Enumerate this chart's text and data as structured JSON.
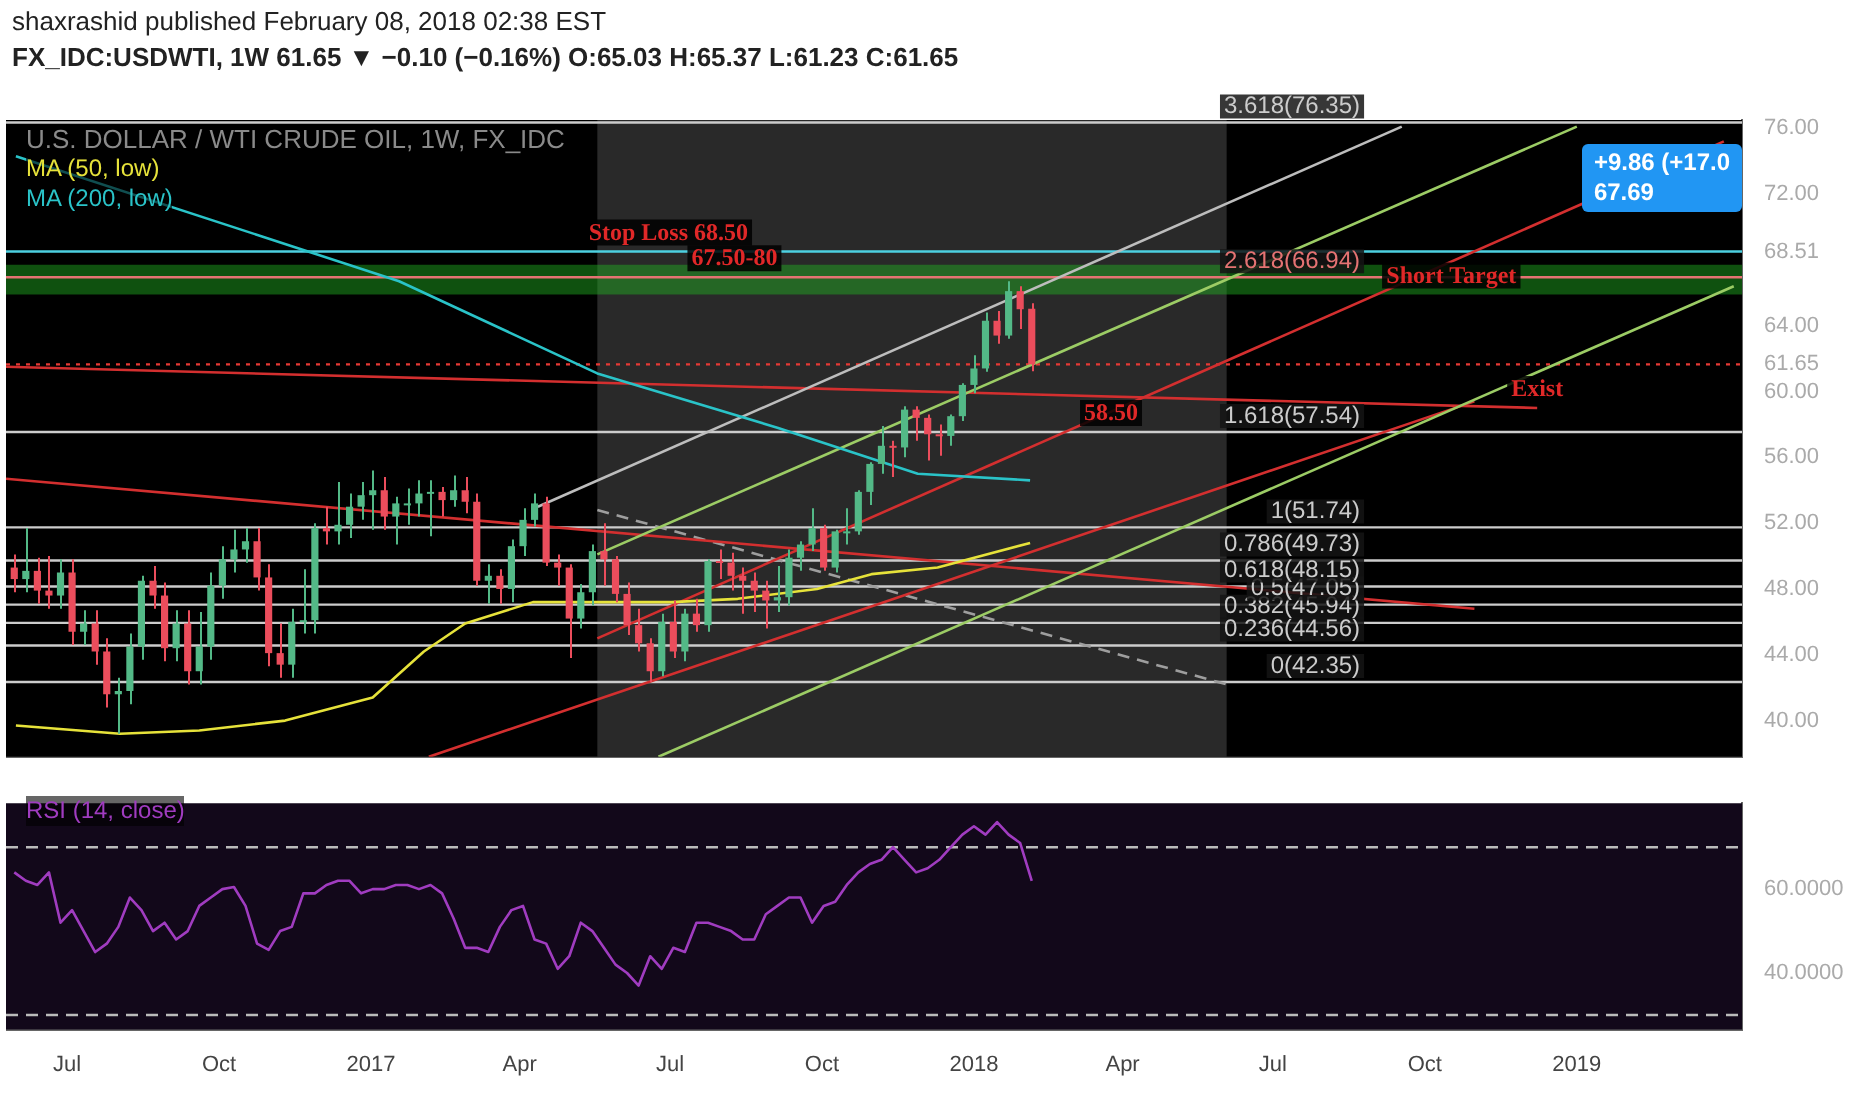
{
  "chart_data": [
    {
      "type": "candlestick",
      "title": "U.S. DOLLAR / WTI CRUDE OIL, 1W, FX_IDC",
      "subtitle": "FX_IDC:USDWTI, 1W 61.65 ▼ −0.10 (−0.16%) O:65.03 H:65.37 L:61.23 C:61.65",
      "x": [
        "2016-05-30",
        "2016-06-06",
        "2016-06-13",
        "2016-06-20",
        "2016-06-27",
        "2016-07-04",
        "2016-07-11",
        "2016-07-18",
        "2016-07-25",
        "2016-08-01",
        "2016-08-08",
        "2016-08-15",
        "2016-08-22",
        "2016-08-29",
        "2016-09-05",
        "2016-09-12",
        "2016-09-19",
        "2016-09-26",
        "2016-10-03",
        "2016-10-10",
        "2016-10-17",
        "2016-10-24",
        "2016-10-31",
        "2016-11-07",
        "2016-11-14",
        "2016-11-21",
        "2016-11-28",
        "2016-12-05",
        "2016-12-12",
        "2016-12-19",
        "2016-12-26",
        "2017-01-02",
        "2017-01-09",
        "2017-01-16",
        "2017-01-23",
        "2017-01-30",
        "2017-02-06",
        "2017-02-13",
        "2017-02-20",
        "2017-02-27",
        "2017-03-06",
        "2017-03-13",
        "2017-03-20",
        "2017-03-27",
        "2017-04-03",
        "2017-04-10",
        "2017-04-17",
        "2017-04-24",
        "2017-05-01",
        "2017-05-08",
        "2017-05-15",
        "2017-05-22",
        "2017-05-29",
        "2017-06-05",
        "2017-06-12",
        "2017-06-19",
        "2017-06-26",
        "2017-07-03",
        "2017-07-10",
        "2017-07-17",
        "2017-07-24",
        "2017-07-31",
        "2017-08-07",
        "2017-08-14",
        "2017-08-21",
        "2017-08-28",
        "2017-09-04",
        "2017-09-11",
        "2017-09-18",
        "2017-09-25",
        "2017-10-02",
        "2017-10-09",
        "2017-10-16",
        "2017-10-23",
        "2017-10-30",
        "2017-11-06",
        "2017-11-13",
        "2017-11-20",
        "2017-11-27",
        "2017-12-04",
        "2017-12-11",
        "2017-12-18",
        "2017-12-25",
        "2018-01-01",
        "2018-01-08",
        "2018-01-15",
        "2018-01-22",
        "2018-01-29",
        "2018-02-05"
      ],
      "ohlc": [
        [
          49.3,
          50.1,
          47.8,
          48.6
        ],
        [
          48.6,
          51.7,
          47.8,
          49.1
        ],
        [
          49.1,
          49.9,
          47.1,
          47.9
        ],
        [
          47.9,
          50.0,
          46.8,
          47.6
        ],
        [
          47.6,
          49.8,
          46.8,
          49.0
        ],
        [
          49.0,
          49.8,
          44.6,
          45.4
        ],
        [
          45.4,
          46.7,
          44.6,
          45.9
        ],
        [
          45.9,
          46.7,
          43.4,
          44.2
        ],
        [
          44.2,
          45.0,
          40.8,
          41.6
        ],
        [
          41.6,
          42.6,
          39.2,
          41.8
        ],
        [
          41.8,
          45.3,
          41.0,
          44.5
        ],
        [
          44.5,
          48.8,
          43.7,
          48.5
        ],
        [
          48.5,
          49.4,
          46.8,
          47.6
        ],
        [
          47.6,
          48.4,
          43.6,
          44.4
        ],
        [
          44.4,
          46.7,
          43.6,
          45.9
        ],
        [
          45.9,
          46.7,
          42.2,
          43.0
        ],
        [
          43.0,
          46.6,
          42.2,
          44.5
        ],
        [
          44.5,
          49.0,
          43.7,
          48.2
        ],
        [
          48.2,
          50.6,
          47.4,
          49.8
        ],
        [
          49.8,
          51.6,
          49.0,
          50.4
        ],
        [
          50.4,
          51.7,
          49.6,
          50.9
        ],
        [
          50.9,
          51.7,
          47.9,
          48.7
        ],
        [
          48.7,
          49.5,
          43.3,
          44.1
        ],
        [
          44.1,
          45.9,
          42.6,
          43.4
        ],
        [
          43.4,
          46.8,
          42.6,
          46.0
        ],
        [
          46.0,
          49.2,
          45.3,
          46.1
        ],
        [
          46.1,
          52.0,
          45.3,
          51.7
        ],
        [
          51.7,
          53.0,
          50.7,
          51.5
        ],
        [
          51.5,
          54.5,
          50.7,
          51.9
        ],
        [
          51.9,
          53.8,
          51.1,
          53.0
        ],
        [
          53.0,
          54.5,
          52.2,
          53.7
        ],
        [
          53.7,
          55.2,
          51.6,
          54.0
        ],
        [
          54.0,
          54.8,
          51.6,
          52.4
        ],
        [
          52.4,
          53.6,
          50.7,
          53.2
        ],
        [
          53.2,
          54.1,
          51.9,
          53.2
        ],
        [
          53.2,
          54.6,
          52.4,
          53.8
        ],
        [
          53.8,
          54.6,
          51.2,
          53.9
        ],
        [
          53.9,
          54.2,
          52.4,
          53.4
        ],
        [
          53.4,
          54.9,
          53.0,
          54.0
        ],
        [
          54.0,
          54.8,
          52.6,
          53.3
        ],
        [
          53.3,
          53.8,
          48.2,
          48.5
        ],
        [
          48.5,
          49.5,
          47.1,
          48.8
        ],
        [
          48.8,
          49.2,
          47.1,
          48.0
        ],
        [
          48.0,
          51.0,
          47.2,
          50.6
        ],
        [
          50.6,
          52.9,
          50.0,
          52.2
        ],
        [
          52.2,
          53.8,
          51.8,
          53.2
        ],
        [
          53.2,
          53.6,
          49.4,
          49.6
        ],
        [
          49.6,
          50.1,
          48.2,
          49.3
        ],
        [
          49.3,
          49.5,
          43.8,
          46.2
        ],
        [
          46.2,
          48.3,
          45.6,
          47.8
        ],
        [
          47.8,
          50.7,
          47.0,
          50.3
        ],
        [
          50.3,
          52.0,
          48.2,
          49.8
        ],
        [
          49.8,
          50.0,
          47.2,
          47.7
        ],
        [
          47.7,
          48.4,
          45.2,
          45.8
        ],
        [
          45.8,
          46.8,
          44.2,
          44.7
        ],
        [
          44.7,
          45.0,
          42.35,
          43.0
        ],
        [
          43.0,
          46.5,
          42.7,
          46.0
        ],
        [
          46.0,
          47.3,
          43.8,
          44.2
        ],
        [
          44.2,
          46.8,
          43.6,
          46.5
        ],
        [
          46.5,
          47.4,
          45.4,
          45.8
        ],
        [
          45.8,
          49.8,
          45.4,
          49.7
        ],
        [
          49.7,
          50.4,
          48.6,
          49.6
        ],
        [
          49.6,
          50.2,
          47.9,
          48.8
        ],
        [
          48.8,
          49.3,
          46.5,
          48.5
        ],
        [
          48.5,
          49.0,
          46.6,
          47.9
        ],
        [
          47.9,
          48.5,
          45.6,
          47.3
        ],
        [
          47.3,
          49.4,
          46.6,
          47.5
        ],
        [
          47.5,
          50.4,
          47.0,
          49.9
        ],
        [
          49.9,
          50.9,
          49.1,
          50.7
        ],
        [
          50.7,
          52.9,
          50.3,
          51.7
        ],
        [
          51.7,
          51.9,
          49.1,
          49.3
        ],
        [
          49.3,
          51.6,
          49.0,
          51.5
        ],
        [
          51.5,
          52.9,
          50.7,
          51.5
        ],
        [
          51.5,
          54.0,
          51.3,
          53.9
        ],
        [
          53.9,
          55.7,
          53.1,
          55.6
        ],
        [
          55.6,
          57.9,
          55.0,
          56.7
        ],
        [
          56.7,
          57.0,
          54.8,
          56.6
        ],
        [
          56.6,
          59.1,
          56.0,
          58.9
        ],
        [
          58.9,
          59.1,
          57.0,
          58.4
        ],
        [
          58.4,
          58.6,
          55.8,
          57.4
        ],
        [
          57.4,
          58.0,
          56.1,
          57.3
        ],
        [
          57.3,
          58.6,
          56.7,
          58.5
        ],
        [
          58.5,
          60.5,
          58.2,
          60.4
        ],
        [
          60.4,
          62.2,
          59.9,
          61.4
        ],
        [
          61.4,
          64.8,
          61.2,
          64.3
        ],
        [
          64.3,
          64.9,
          62.9,
          63.4
        ],
        [
          63.4,
          66.7,
          63.2,
          66.1
        ],
        [
          66.1,
          66.4,
          63.8,
          65.0
        ],
        [
          65.03,
          65.37,
          61.23,
          61.65
        ]
      ],
      "series": [
        {
          "name": "MA (50, low)",
          "type": "line",
          "color": "#e6e23a",
          "x": [
            "2016-05-31",
            "2016-08-02",
            "2016-09-19",
            "2016-11-10",
            "2017-01-02",
            "2017-02-02",
            "2017-02-27",
            "2017-04-09",
            "2017-07-02",
            "2017-08-11",
            "2017-09-28",
            "2017-10-31",
            "2017-12-10",
            "2018-02-04"
          ],
          "values": [
            39.7,
            39.2,
            39.4,
            40.0,
            41.4,
            44.2,
            45.9,
            47.2,
            47.2,
            47.4,
            48.0,
            48.9,
            49.3,
            50.8
          ]
        },
        {
          "name": "MA (200, low)",
          "type": "line",
          "color": "#2ac3c8",
          "x": [
            "2016-05-31",
            "2016-11-15",
            "2017-01-18",
            "2017-05-18",
            "2017-09-04",
            "2017-11-28",
            "2018-02-04"
          ],
          "values": [
            74.3,
            68.8,
            66.7,
            61.1,
            57.8,
            55.0,
            54.6
          ]
        },
        {
          "type": "line",
          "color": "#bdbdbd",
          "x": [
            "2017-04-12",
            "2018-09-17"
          ],
          "values": [
            53.0,
            76.1
          ]
        },
        {
          "type": "line",
          "color": "#9ccc65",
          "x": [
            "2017-05-18",
            "2019-01-01"
          ],
          "values": [
            50.1,
            76.1
          ]
        },
        {
          "type": "line",
          "color": "#d32f2f",
          "x": [
            "2017-05-18",
            "2019-03-31"
          ],
          "values": [
            45.0,
            75.2
          ]
        },
        {
          "type": "line",
          "color": "#9ccc65",
          "x": [
            "2017-06-24",
            "2019-04-06"
          ],
          "values": [
            37.8,
            66.4
          ]
        },
        {
          "type": "line",
          "color": "#d32f2f",
          "x": [
            "2017-02-05",
            "2018-10-31"
          ],
          "values": [
            37.8,
            59.4
          ]
        },
        {
          "type": "line",
          "color": "#d32f2f",
          "x": [
            "2016-05-25",
            "2018-10-31"
          ],
          "values": [
            54.7,
            46.8
          ]
        },
        {
          "type": "line",
          "color": "#d32f2f",
          "x": [
            "2016-05-25",
            "2018-12-08"
          ],
          "values": [
            61.5,
            59.0
          ]
        },
        {
          "type": "line",
          "color": "#9e9e9e",
          "line_style": "dashed",
          "x": [
            "2017-05-18",
            "2018-06-03"
          ],
          "values": [
            52.8,
            42.2
          ]
        }
      ],
      "xlim": [
        "2016-05-25",
        "2019-04-11"
      ],
      "ylim": [
        37.8,
        76.5
      ],
      "yticks": [
        {
          "value": 40,
          "label": "40.00"
        },
        {
          "value": 44,
          "label": "44.00"
        },
        {
          "value": 48,
          "label": "48.00"
        },
        {
          "value": 52,
          "label": "52.00"
        },
        {
          "value": 56,
          "label": "56.00"
        },
        {
          "value": 60,
          "label": "60.00"
        },
        {
          "value": 61.65,
          "label": "61.65"
        },
        {
          "value": 64,
          "label": "64.00"
        },
        {
          "value": 68.51,
          "label": "68.51"
        },
        {
          "value": 72,
          "label": "72.00"
        },
        {
          "value": 76,
          "label": "76.00"
        }
      ],
      "tick_labels": "y",
      "grid": false,
      "legend": "top left",
      "bands": [
        {
          "axis": "x",
          "from": "2017-05-18",
          "to": "2018-06-03",
          "color": "#5a5a5a"
        },
        {
          "axis": "y",
          "from": 65.9,
          "to": 67.7,
          "color": "#22b322"
        }
      ],
      "ref_lines": [
        {
          "axis": "y",
          "value": 42.35,
          "label": "0(42.35)",
          "color": "#cccccc"
        },
        {
          "axis": "y",
          "value": 44.56,
          "label": "0.236(44.56)",
          "color": "#cccccc"
        },
        {
          "axis": "y",
          "value": 45.94,
          "label": "0.382(45.94)",
          "color": "#cccccc"
        },
        {
          "axis": "y",
          "value": 47.05,
          "label": "0.5(47.05)",
          "color": "#cccccc"
        },
        {
          "axis": "y",
          "value": 48.15,
          "label": "0.618(48.15)",
          "color": "#cccccc"
        },
        {
          "axis": "y",
          "value": 49.73,
          "label": "0.786(49.73)",
          "color": "#cccccc"
        },
        {
          "axis": "y",
          "value": 51.74,
          "label": "1(51.74)",
          "color": "#cccccc"
        },
        {
          "axis": "y",
          "value": 57.54,
          "label": "1.618(57.54)",
          "color": "#cccccc"
        },
        {
          "axis": "y",
          "value": 66.94,
          "label": "2.618(66.94)",
          "color": "#e57373"
        },
        {
          "axis": "y",
          "value": 76.35,
          "label": "3.618(76.35)",
          "color": "#cccccc"
        },
        {
          "axis": "y",
          "value": 68.51,
          "color": "#4dd0e1"
        },
        {
          "axis": "y",
          "value": 61.65,
          "color": "#e53935",
          "line_style": "dotted"
        }
      ],
      "annotations": [
        "shaxrashid published February 08, 2018 02:38 EST",
        {
          "text": "Stop Loss 68.50",
          "x": "2017-06-30",
          "y": 68.51
        },
        {
          "text": "67.50-80",
          "x": "2017-08-09",
          "y": 66.94
        },
        {
          "text": "Short Target",
          "x": "2018-10-17",
          "y": 65.9
        },
        {
          "text": "Exist",
          "x": "2018-12-08",
          "y": 59.0
        },
        {
          "text": "58.50",
          "x": "2018-03-25",
          "y": 57.54
        },
        "+9.86 (+17.0",
        "67.69"
      ]
    },
    {
      "type": "line",
      "legend": "top left",
      "grid": false,
      "x": [
        "2016-05-30",
        "2016-06-06",
        "2016-06-13",
        "2016-06-20",
        "2016-06-27",
        "2016-07-04",
        "2016-07-11",
        "2016-07-18",
        "2016-07-25",
        "2016-08-01",
        "2016-08-08",
        "2016-08-15",
        "2016-08-22",
        "2016-08-29",
        "2016-09-05",
        "2016-09-12",
        "2016-09-19",
        "2016-09-26",
        "2016-10-03",
        "2016-10-10",
        "2016-10-17",
        "2016-10-24",
        "2016-10-31",
        "2016-11-07",
        "2016-11-14",
        "2016-11-21",
        "2016-11-28",
        "2016-12-05",
        "2016-12-12",
        "2016-12-19",
        "2016-12-26",
        "2017-01-02",
        "2017-01-09",
        "2017-01-16",
        "2017-01-23",
        "2017-01-30",
        "2017-02-06",
        "2017-02-13",
        "2017-02-20",
        "2017-02-27",
        "2017-03-06",
        "2017-03-13",
        "2017-03-20",
        "2017-03-27",
        "2017-04-03",
        "2017-04-10",
        "2017-04-17",
        "2017-04-24",
        "2017-05-01",
        "2017-05-08",
        "2017-05-15",
        "2017-05-22",
        "2017-05-29",
        "2017-06-05",
        "2017-06-12",
        "2017-06-19",
        "2017-06-26",
        "2017-07-03",
        "2017-07-10",
        "2017-07-17",
        "2017-07-24",
        "2017-07-31",
        "2017-08-07",
        "2017-08-14",
        "2017-08-21",
        "2017-08-28",
        "2017-09-04",
        "2017-09-11",
        "2017-09-18",
        "2017-09-25",
        "2017-10-02",
        "2017-10-09",
        "2017-10-16",
        "2017-10-23",
        "2017-10-30",
        "2017-11-06",
        "2017-11-13",
        "2017-11-20",
        "2017-11-27",
        "2017-12-04",
        "2017-12-11",
        "2017-12-18",
        "2017-12-25",
        "2018-01-01",
        "2018-01-08",
        "2018-01-15",
        "2018-01-22",
        "2018-01-29",
        "2018-02-05"
      ],
      "series": [
        {
          "name": "RSI (14, close)",
          "color": "#a03cc0",
          "values": [
            64,
            62,
            61,
            64,
            52,
            55,
            50,
            45,
            47,
            51,
            58,
            55,
            50,
            52,
            48,
            50,
            56,
            58,
            60,
            60.5,
            56,
            47,
            45.5,
            50,
            51,
            59,
            59,
            61,
            62,
            62,
            59,
            60,
            60,
            61,
            61,
            60,
            61,
            59,
            53,
            46,
            46,
            45,
            51,
            55,
            56,
            48,
            47,
            41,
            44,
            52,
            50,
            46,
            42,
            40,
            37,
            44,
            41,
            46,
            45,
            52,
            52,
            51,
            50,
            48,
            48,
            54,
            56,
            58,
            58,
            52,
            56,
            57,
            61,
            64,
            66,
            67,
            70,
            67,
            64,
            65,
            67,
            70,
            73,
            75,
            73,
            76,
            73,
            71,
            62
          ]
        }
      ],
      "xlim": [
        "2016-05-25",
        "2019-04-11"
      ],
      "xticks": [
        {
          "value": "2016-07-01",
          "label": "Jul"
        },
        {
          "value": "2016-10-01",
          "label": "Oct"
        },
        {
          "value": "2017-01-01",
          "label": "2017"
        },
        {
          "value": "2017-04-01",
          "label": "Apr"
        },
        {
          "value": "2017-07-01",
          "label": "Jul"
        },
        {
          "value": "2017-10-01",
          "label": "Oct"
        },
        {
          "value": "2018-01-01",
          "label": "2018"
        },
        {
          "value": "2018-04-01",
          "label": "Apr"
        },
        {
          "value": "2018-07-01",
          "label": "Jul"
        },
        {
          "value": "2018-10-01",
          "label": "Oct"
        },
        {
          "value": "2019-01-01",
          "label": "2019"
        }
      ],
      "ylim": [
        26.5,
        80.5
      ],
      "yticks": [
        {
          "value": 40,
          "label": "40.0000"
        },
        {
          "value": 60,
          "label": "60.0000"
        }
      ],
      "ref_lines": [
        {
          "axis": "y",
          "value": 70,
          "color": "#bbbbbb",
          "line_style": "dashed"
        },
        {
          "axis": "y",
          "value": 30,
          "color": "#bbbbbb",
          "line_style": "dashed"
        }
      ]
    }
  ]
}
